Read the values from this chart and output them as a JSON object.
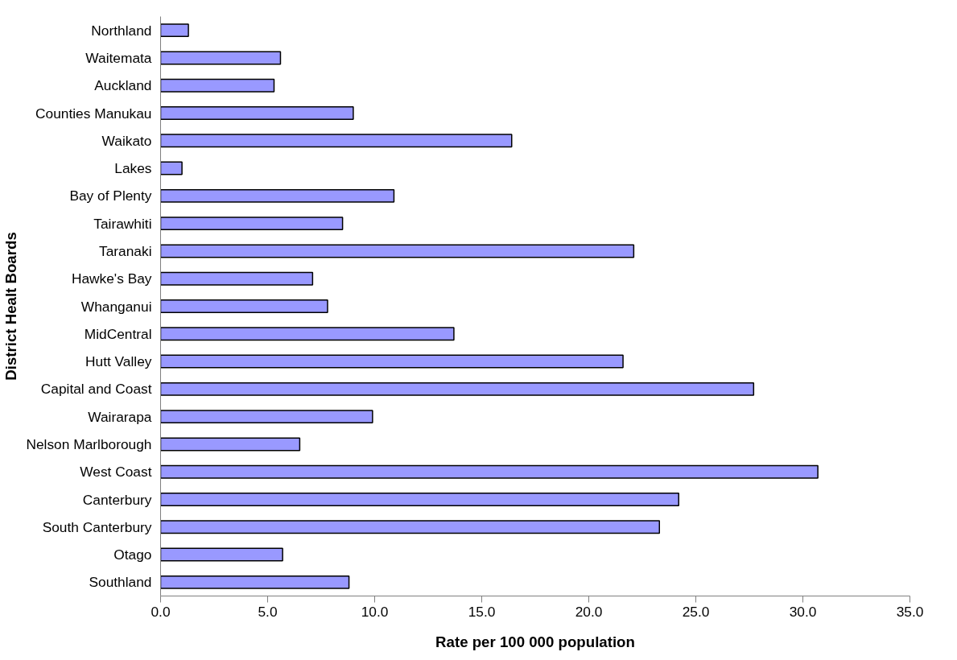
{
  "chart_data": {
    "type": "bar",
    "orientation": "horizontal",
    "xlabel": "Rate per 100 000 population",
    "ylabel": "District Healt Boards",
    "categories": [
      "Northland",
      "Waitemata",
      "Auckland",
      "Counties Manukau",
      "Waikato",
      "Lakes",
      "Bay of Plenty",
      "Tairawhiti",
      "Taranaki",
      "Hawke's Bay",
      "Whanganui",
      "MidCentral",
      "Hutt Valley",
      "Capital and Coast",
      "Wairarapa",
      "Nelson Marlborough",
      "West Coast",
      "Canterbury",
      "South Canterbury",
      "Otago",
      "Southland"
    ],
    "values": [
      1.3,
      5.6,
      5.3,
      9.0,
      16.4,
      1.0,
      10.9,
      8.5,
      22.1,
      7.1,
      7.8,
      13.7,
      21.6,
      27.7,
      9.9,
      6.5,
      30.7,
      24.2,
      23.3,
      5.7,
      8.8
    ],
    "color": "#9999ff",
    "xlim": [
      0,
      35
    ],
    "xticks": [
      {
        "value": 0,
        "label": "0.0"
      },
      {
        "value": 5,
        "label": "5.0"
      },
      {
        "value": 10,
        "label": "10.0"
      },
      {
        "value": 15,
        "label": "15.0"
      },
      {
        "value": 20,
        "label": "20.0"
      },
      {
        "value": 25,
        "label": "25.0"
      },
      {
        "value": 30,
        "label": "30.0"
      },
      {
        "value": 35,
        "label": "35.0"
      }
    ],
    "grid": false
  }
}
